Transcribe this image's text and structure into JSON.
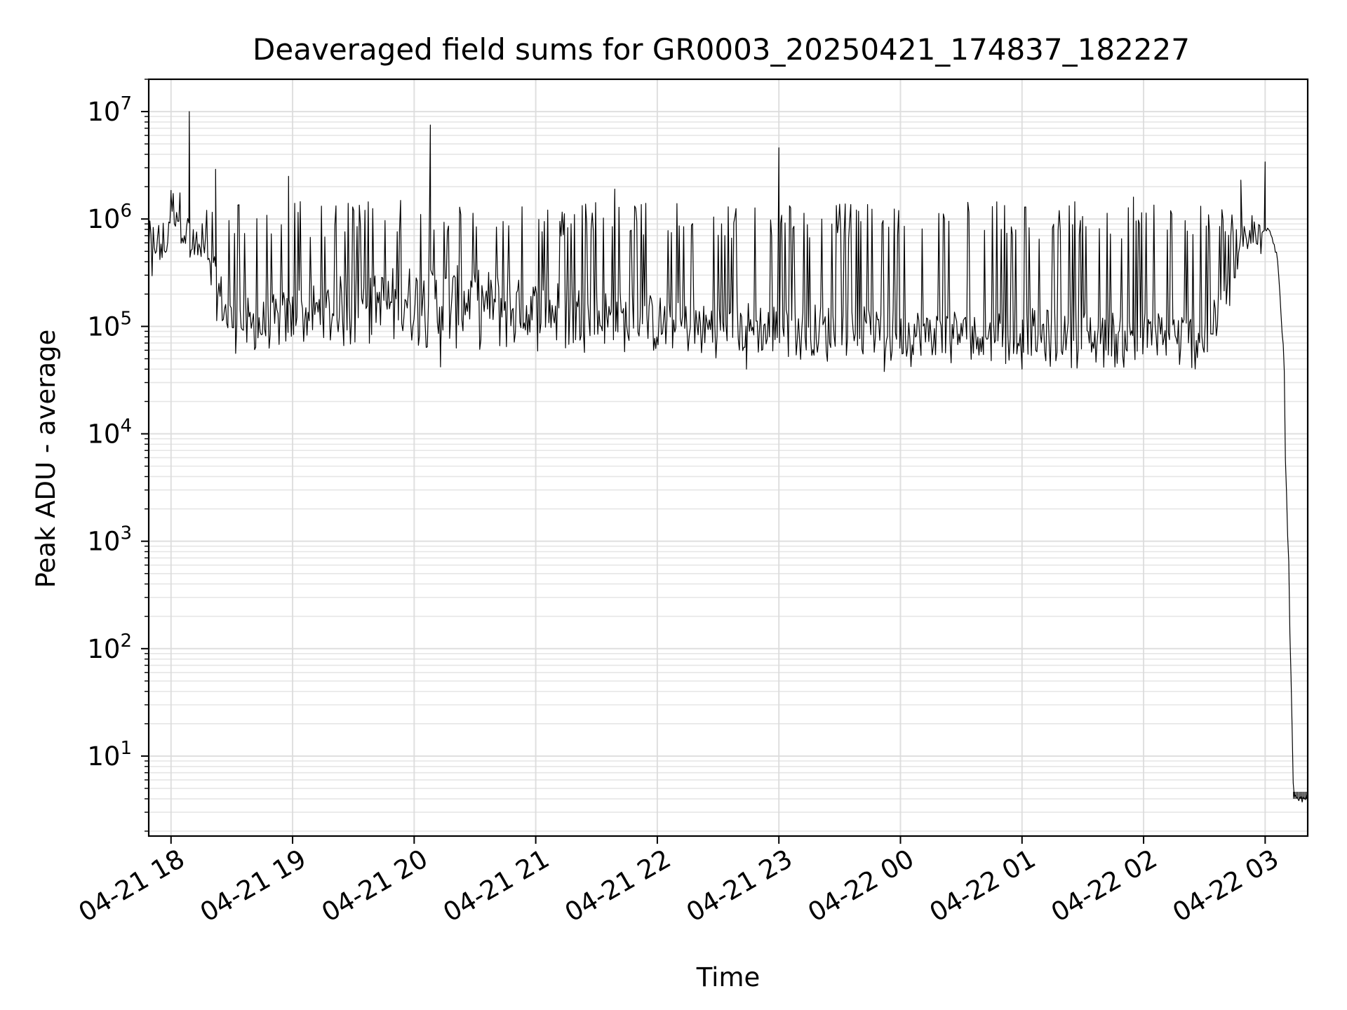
{
  "chart_data": {
    "type": "line",
    "title": "Deaveraged field sums for GR0003_20250421_174837_182227",
    "xlabel": "Time",
    "ylabel": "Peak ADU - average",
    "y_scale": "log",
    "ylim": [
      1.8,
      20000000
    ],
    "xlim": [
      "04-21 17:49",
      "04-22 03:21"
    ],
    "grid": true,
    "x_ticks": [
      "04-21 18",
      "04-21 19",
      "04-21 20",
      "04-21 21",
      "04-21 22",
      "04-21 23",
      "04-22 00",
      "04-22 01",
      "04-22 02",
      "04-22 03"
    ],
    "y_ticks": [
      {
        "value": 10,
        "base": "10",
        "exp": "1"
      },
      {
        "value": 100,
        "base": "10",
        "exp": "2"
      },
      {
        "value": 1000,
        "base": "10",
        "exp": "3"
      },
      {
        "value": 10000,
        "base": "10",
        "exp": "4"
      },
      {
        "value": 100000,
        "base": "10",
        "exp": "5"
      },
      {
        "value": 1000000,
        "base": "10",
        "exp": "6"
      },
      {
        "value": 10000000,
        "base": "10",
        "exp": "7"
      }
    ],
    "series": [
      {
        "color": "#000000",
        "x": [
          "04-21 17:49",
          "04-21 17:58",
          "04-21 18:00",
          "04-21 18:06",
          "04-21 18:10",
          "04-21 18:13",
          "04-21 18:20",
          "04-21 18:26",
          "04-21 18:30",
          "04-21 18:45",
          "04-21 19:00",
          "04-21 19:30",
          "04-21 20:00",
          "04-21 20:30",
          "04-21 21:00",
          "04-21 21:30",
          "04-21 22:00",
          "04-21 22:30",
          "04-21 23:00",
          "04-21 23:30",
          "04-22 00:00",
          "04-22 00:30",
          "04-22 01:00",
          "04-22 01:30",
          "04-22 02:00",
          "04-22 02:30",
          "04-22 02:43",
          "04-22 02:50",
          "04-22 03:00",
          "04-22 03:03",
          "04-22 03:06",
          "04-22 03:09",
          "04-22 03:12",
          "04-22 03:14",
          "04-22 03:21"
        ],
        "low": [
          380000,
          450000,
          900000,
          600000,
          420000,
          320000,
          180000,
          90000,
          70000,
          60000,
          62000,
          60000,
          62000,
          60000,
          58000,
          57000,
          56000,
          55000,
          54000,
          53000,
          52000,
          54000,
          53000,
          52000,
          52000,
          50000,
          150000,
          400000,
          800000,
          700000,
          400000,
          50000,
          200,
          4,
          4
        ],
        "base": [
          480000,
          520000,
          1200000,
          1000000,
          500000,
          420000,
          260000,
          140000,
          100000,
          90000,
          120000,
          160000,
          200000,
          180000,
          150000,
          120000,
          100000,
          90000,
          85000,
          80000,
          75000,
          75000,
          75000,
          72000,
          70000,
          70000,
          180000,
          500000,
          850000,
          750000,
          450000,
          60000,
          250,
          4,
          4
        ],
        "high": [
          600000,
          620000,
          1600000,
          1400000,
          600000,
          1400000,
          1500000,
          1500000,
          1500000,
          1500000,
          1500000,
          1500000,
          1500000,
          1450000,
          1450000,
          1450000,
          1450000,
          1400000,
          1400000,
          1400000,
          1400000,
          1450000,
          1450000,
          1450000,
          1450000,
          1450000,
          1400000,
          900000,
          1000000,
          800000,
          500000,
          70000,
          300,
          4.5,
          4.5
        ],
        "spikes": [
          {
            "x": "04-21 18:00",
            "y": 1700000
          },
          {
            "x": "04-21 18:09",
            "y": 10000000
          },
          {
            "x": "04-21 18:22",
            "y": 2900000
          },
          {
            "x": "04-21 18:58",
            "y": 2500000
          },
          {
            "x": "04-21 20:08",
            "y": 7500000
          },
          {
            "x": "04-21 21:39",
            "y": 1900000
          },
          {
            "x": "04-21 23:00",
            "y": 4600000
          },
          {
            "x": "04-22 01:55",
            "y": 1600000
          },
          {
            "x": "04-22 02:48",
            "y": 2300000
          },
          {
            "x": "04-22 03:00",
            "y": 3400000
          }
        ],
        "dips": [
          {
            "x": "04-21 20:13",
            "y": 42000
          },
          {
            "x": "04-21 22:44",
            "y": 40000
          },
          {
            "x": "04-21 23:52",
            "y": 38000
          },
          {
            "x": "04-22 01:00",
            "y": 40000
          }
        ]
      }
    ]
  }
}
